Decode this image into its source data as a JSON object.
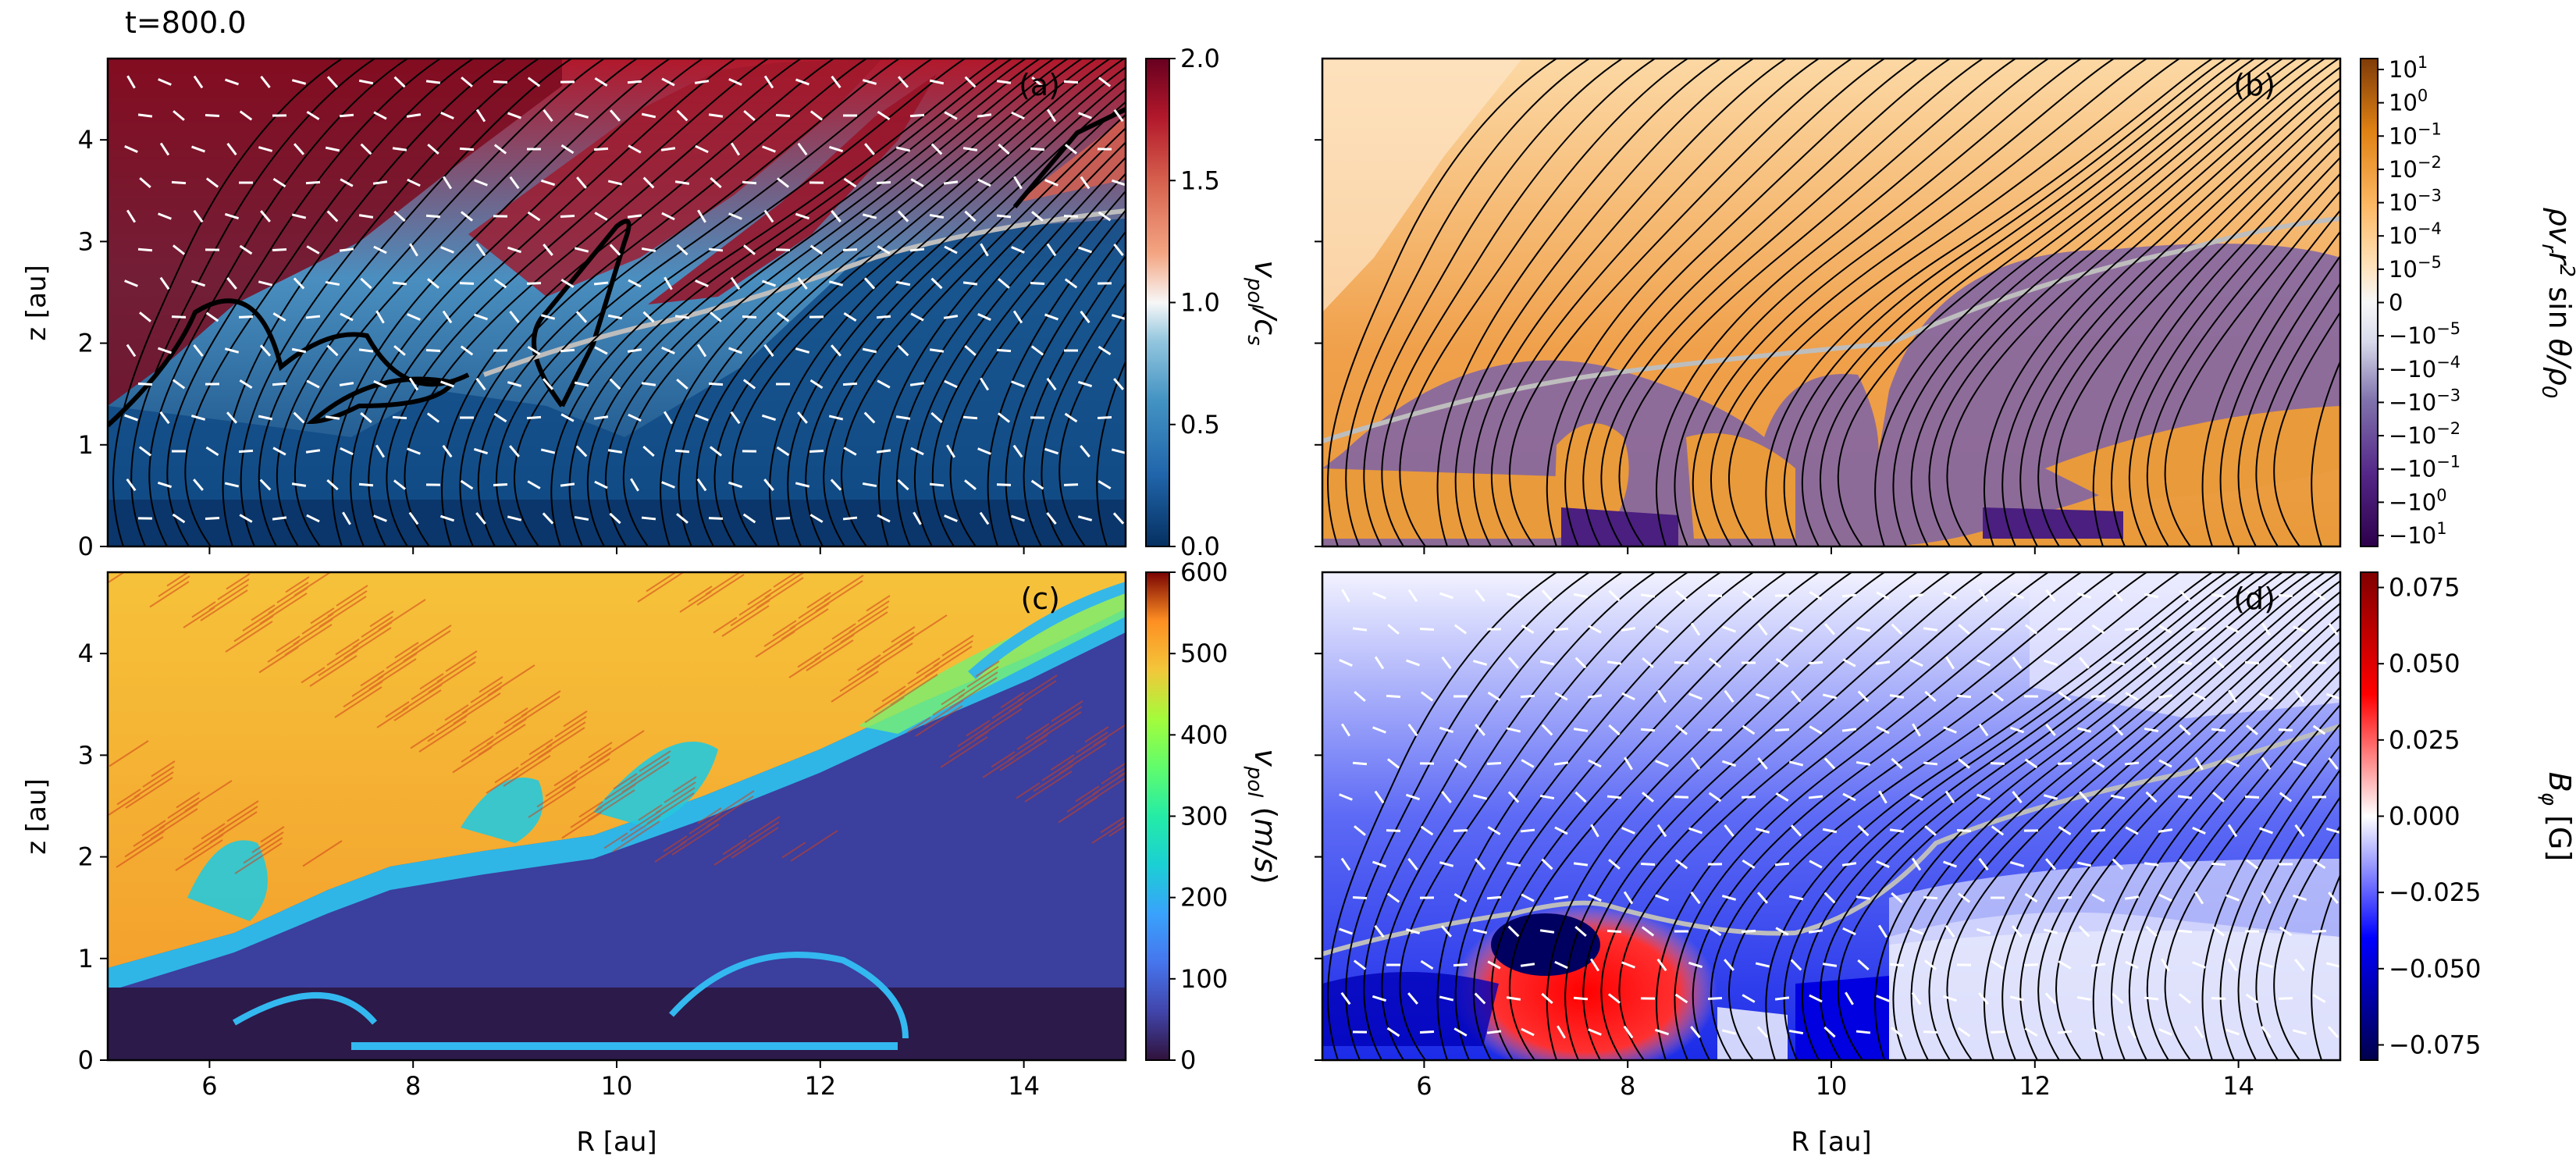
{
  "figure": {
    "time_label": "t=800.0"
  },
  "chart_data": [
    {
      "panel_label": "(a)",
      "type": "heatmap",
      "xlim": [
        5,
        15
      ],
      "ylim": [
        0,
        4.8
      ],
      "x_ticks": [
        "6",
        "8",
        "10",
        "12",
        "14"
      ],
      "y_ticks": [
        "0",
        "1",
        "2",
        "3",
        "4"
      ],
      "xlabel": "",
      "ylabel": "z [au]",
      "colormap": "RdBu_r",
      "colorbar": {
        "label": "v_pol/c_s",
        "ticks": [
          "0.0",
          "0.5",
          "1.0",
          "1.5",
          "2.0"
        ],
        "range": [
          0.0,
          2.0
        ]
      },
      "overlays": [
        "poloidal field lines (black)",
        "velocity direction arrows (white)",
        "sonic contour v_pol/c_s = 1 (thick black)",
        "gray contour"
      ]
    },
    {
      "panel_label": "(b)",
      "type": "heatmap",
      "xlim": [
        5,
        15
      ],
      "ylim": [
        0,
        4.8
      ],
      "x_ticks": [
        "6",
        "8",
        "10",
        "12",
        "14"
      ],
      "y_ticks": [],
      "xlabel": "",
      "ylabel": "",
      "colormap": "PuOr_r (symmetric log)",
      "colorbar": {
        "label": "ρv_r r² sin θ/ρ₀",
        "ticks": [
          {
            "m": "10",
            "e": "1"
          },
          {
            "m": "10",
            "e": "0"
          },
          {
            "m": "10",
            "e": "−1"
          },
          {
            "m": "10",
            "e": "−2"
          },
          {
            "m": "10",
            "e": "−3"
          },
          {
            "m": "10",
            "e": "−4"
          },
          {
            "m": "10",
            "e": "−5"
          },
          {
            "m": "0",
            "e": ""
          },
          {
            "m": "−10",
            "e": "−5"
          },
          {
            "m": "−10",
            "e": "−4"
          },
          {
            "m": "−10",
            "e": "−3"
          },
          {
            "m": "−10",
            "e": "−2"
          },
          {
            "m": "−10",
            "e": "−1"
          },
          {
            "m": "−10",
            "e": "0"
          },
          {
            "m": "−10",
            "e": "1"
          }
        ]
      },
      "overlays": [
        "poloidal field lines (black)",
        "gray contour"
      ]
    },
    {
      "panel_label": "(c)",
      "type": "heatmap",
      "xlim": [
        5,
        15
      ],
      "ylim": [
        0,
        4.8
      ],
      "x_ticks": [
        "6",
        "8",
        "10",
        "12",
        "14"
      ],
      "y_ticks": [
        "0",
        "1",
        "2",
        "3",
        "4"
      ],
      "xlabel": "R [au]",
      "ylabel": "z [au]",
      "colormap": "turbo",
      "colorbar": {
        "label": "v_pol (m/s)",
        "ticks": [
          "0",
          "100",
          "200",
          "300",
          "400",
          "500",
          "600"
        ],
        "range": [
          0,
          600
        ]
      },
      "overlays": [
        "line integral convolution streaks"
      ]
    },
    {
      "panel_label": "(d)",
      "type": "heatmap",
      "xlim": [
        5,
        15
      ],
      "ylim": [
        0,
        4.8
      ],
      "x_ticks": [
        "6",
        "8",
        "10",
        "12",
        "14"
      ],
      "y_ticks": [],
      "xlabel": "R [au]",
      "ylabel": "",
      "colormap": "seismic",
      "colorbar": {
        "label": "B_φ [G]",
        "ticks": [
          "−0.075",
          "−0.050",
          "−0.025",
          "0.000",
          "0.025",
          "0.050",
          "0.075"
        ],
        "range": [
          -0.08,
          0.08
        ]
      },
      "overlays": [
        "poloidal field lines (black)",
        "velocity direction arrows (white)",
        "gray contour"
      ]
    }
  ]
}
